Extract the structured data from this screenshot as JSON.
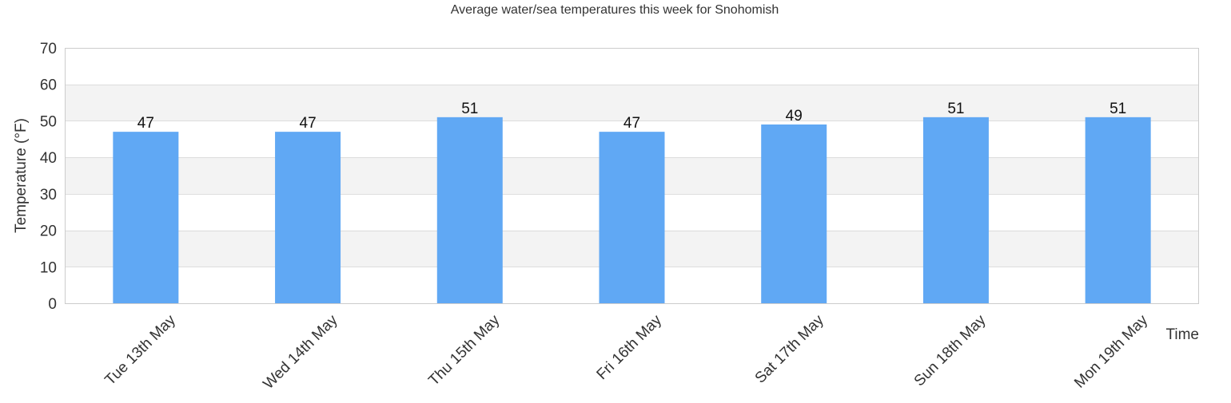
{
  "chart_data": {
    "type": "bar",
    "title": "Average water/sea temperatures this week for Snohomish",
    "xlabel": "Time",
    "ylabel": "Temperature (°F)",
    "categories": [
      "Tue 13th May",
      "Wed 14th May",
      "Thu 15th May",
      "Fri 16th May",
      "Sat 17th May",
      "Sun 18th May",
      "Mon 19th May"
    ],
    "values": [
      47,
      47,
      51,
      47,
      49,
      51,
      51
    ],
    "ylim": [
      0,
      70
    ],
    "yticks": [
      0,
      10,
      20,
      30,
      40,
      50,
      60,
      70
    ],
    "grid": true,
    "legend": "none",
    "colors": {
      "bar": "#60a8f4",
      "band": "#f3f3f3",
      "grid": "#dddddd",
      "axis": "#cccccc"
    }
  }
}
